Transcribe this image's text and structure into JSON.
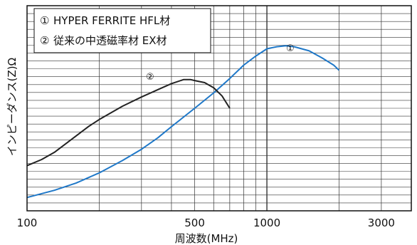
{
  "chart_data": {
    "type": "line",
    "xlabel": "周波数(MHz)",
    "ylabel": "インピーダンス(Z)Ω",
    "x_scale": "log",
    "xlim": [
      100,
      4000
    ],
    "ylim": [
      0,
      1
    ],
    "x_ticks": [
      100,
      500,
      1000,
      3000
    ],
    "x_tick_labels": [
      "100",
      "500",
      "1000",
      "3000"
    ],
    "y_ticks_labeled": false,
    "grid": true,
    "legend_position": "top-left",
    "legend": [
      {
        "marker": "①",
        "text": "HYPER FERRITE  HFL材"
      },
      {
        "marker": "②",
        "text": "従来の中透磁率材    EX材"
      }
    ],
    "series": [
      {
        "name": "①",
        "color": "#1f78c8",
        "x": [
          100,
          130,
          160,
          200,
          250,
          300,
          350,
          400,
          500,
          600,
          700,
          800,
          900,
          1000,
          1100,
          1200,
          1300,
          1500,
          1700,
          1900,
          2000
        ],
        "y": [
          0.065,
          0.1,
          0.135,
          0.185,
          0.245,
          0.3,
          0.355,
          0.41,
          0.5,
          0.575,
          0.645,
          0.71,
          0.755,
          0.79,
          0.8,
          0.805,
          0.8,
          0.78,
          0.745,
          0.71,
          0.685
        ]
      },
      {
        "name": "②",
        "color": "#222222",
        "x": [
          100,
          115,
          130,
          150,
          180,
          200,
          250,
          300,
          350,
          400,
          450,
          480,
          500,
          550,
          600,
          650,
          700
        ],
        "y": [
          0.22,
          0.25,
          0.285,
          0.34,
          0.41,
          0.445,
          0.51,
          0.555,
          0.59,
          0.62,
          0.64,
          0.64,
          0.635,
          0.625,
          0.6,
          0.56,
          0.5
        ]
      }
    ],
    "callouts": [
      {
        "text": "①",
        "series": "①"
      },
      {
        "text": "②",
        "series": "②"
      }
    ]
  }
}
